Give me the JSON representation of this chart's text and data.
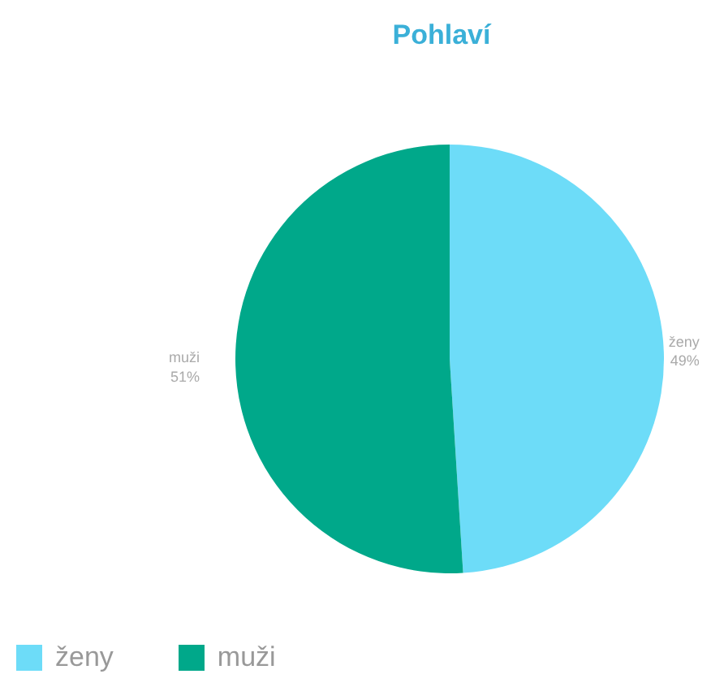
{
  "chart_data": {
    "type": "pie",
    "title": "Pohlaví",
    "categories": [
      "ženy",
      "muži"
    ],
    "values": [
      49,
      51
    ],
    "colors": [
      "#6ddcf8",
      "#00a88a"
    ],
    "value_labels": [
      "49%",
      "51%"
    ],
    "legend": "bottom left"
  }
}
